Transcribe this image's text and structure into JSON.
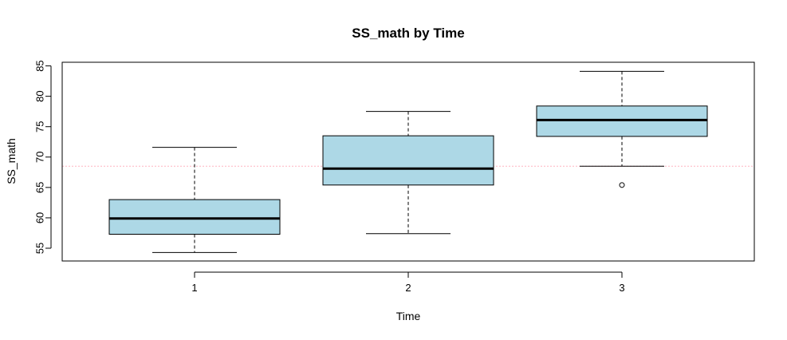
{
  "chart_data": {
    "type": "boxplot",
    "title": "SS_math by Time",
    "xlabel": "Time",
    "ylabel": "SS_math",
    "ylim": [
      52.9,
      85.6
    ],
    "yticks": [
      "55",
      "60",
      "65",
      "70",
      "75",
      "80",
      "85"
    ],
    "categories": [
      "1",
      "2",
      "3"
    ],
    "box_fill": "#add8e6",
    "reference_line": {
      "y": 68.5,
      "color": "#ffb6c1"
    },
    "boxes": [
      {
        "category": "1",
        "whisker_low": 54.3,
        "q1": 57.3,
        "median": 59.9,
        "q3": 63.0,
        "whisker_high": 71.6,
        "outliers": []
      },
      {
        "category": "2",
        "whisker_low": 57.4,
        "q1": 65.4,
        "median": 68.1,
        "q3": 73.5,
        "whisker_high": 77.5,
        "outliers": []
      },
      {
        "category": "3",
        "whisker_low": 68.5,
        "q1": 73.4,
        "median": 76.1,
        "q3": 78.4,
        "whisker_high": 84.1,
        "outliers": [
          65.4
        ]
      }
    ]
  }
}
